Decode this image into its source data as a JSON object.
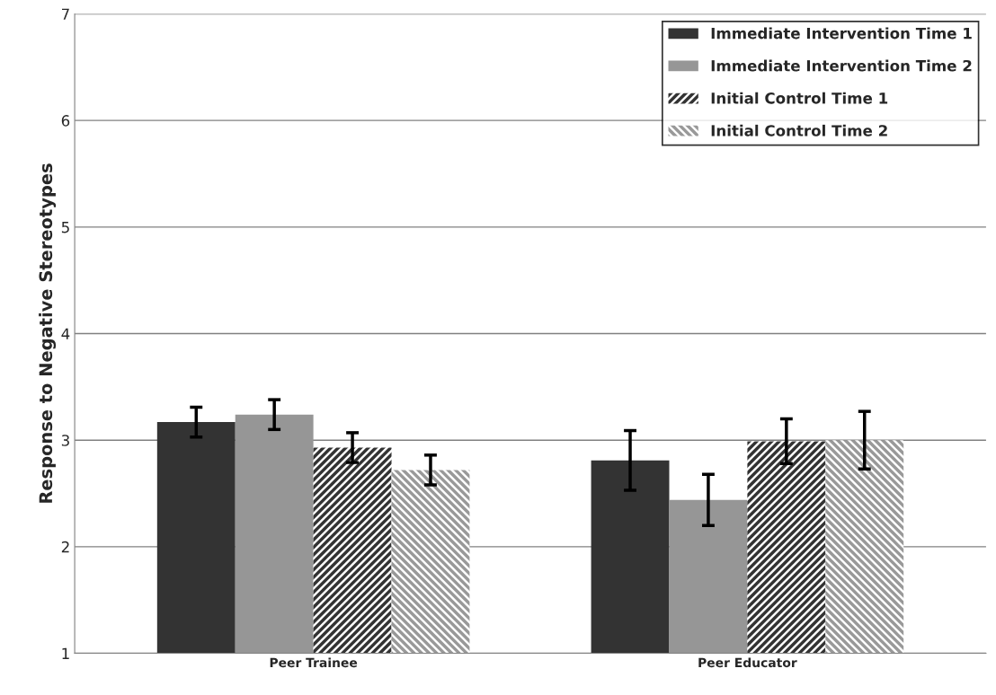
{
  "chart_data": {
    "type": "bar",
    "ylabel": "Response to Negative Stereotypes",
    "categories": [
      "Peer Trainee",
      "Peer Educator"
    ],
    "series": [
      {
        "name": "Immediate Intervention Time 1",
        "color": "#333333",
        "values": [
          3.17,
          2.81
        ],
        "errors": [
          0.14,
          0.28
        ]
      },
      {
        "name": "Immediate Intervention Time 2",
        "color": "#969696",
        "values": [
          3.24,
          2.44
        ],
        "errors": [
          0.14,
          0.24
        ]
      },
      {
        "name": "Initial Control Time 1",
        "color": "#333333",
        "values": [
          2.93,
          2.99
        ],
        "errors": [
          0.14,
          0.21
        ]
      },
      {
        "name": "Initial Control Time 2",
        "color": "#999999",
        "values": [
          2.72,
          3.0
        ],
        "errors": [
          0.14,
          0.27
        ]
      }
    ],
    "ylim": [
      1,
      7
    ],
    "yticks": [
      1,
      2,
      3,
      4,
      5,
      6,
      7
    ],
    "grid": "y",
    "legend": "top right"
  }
}
